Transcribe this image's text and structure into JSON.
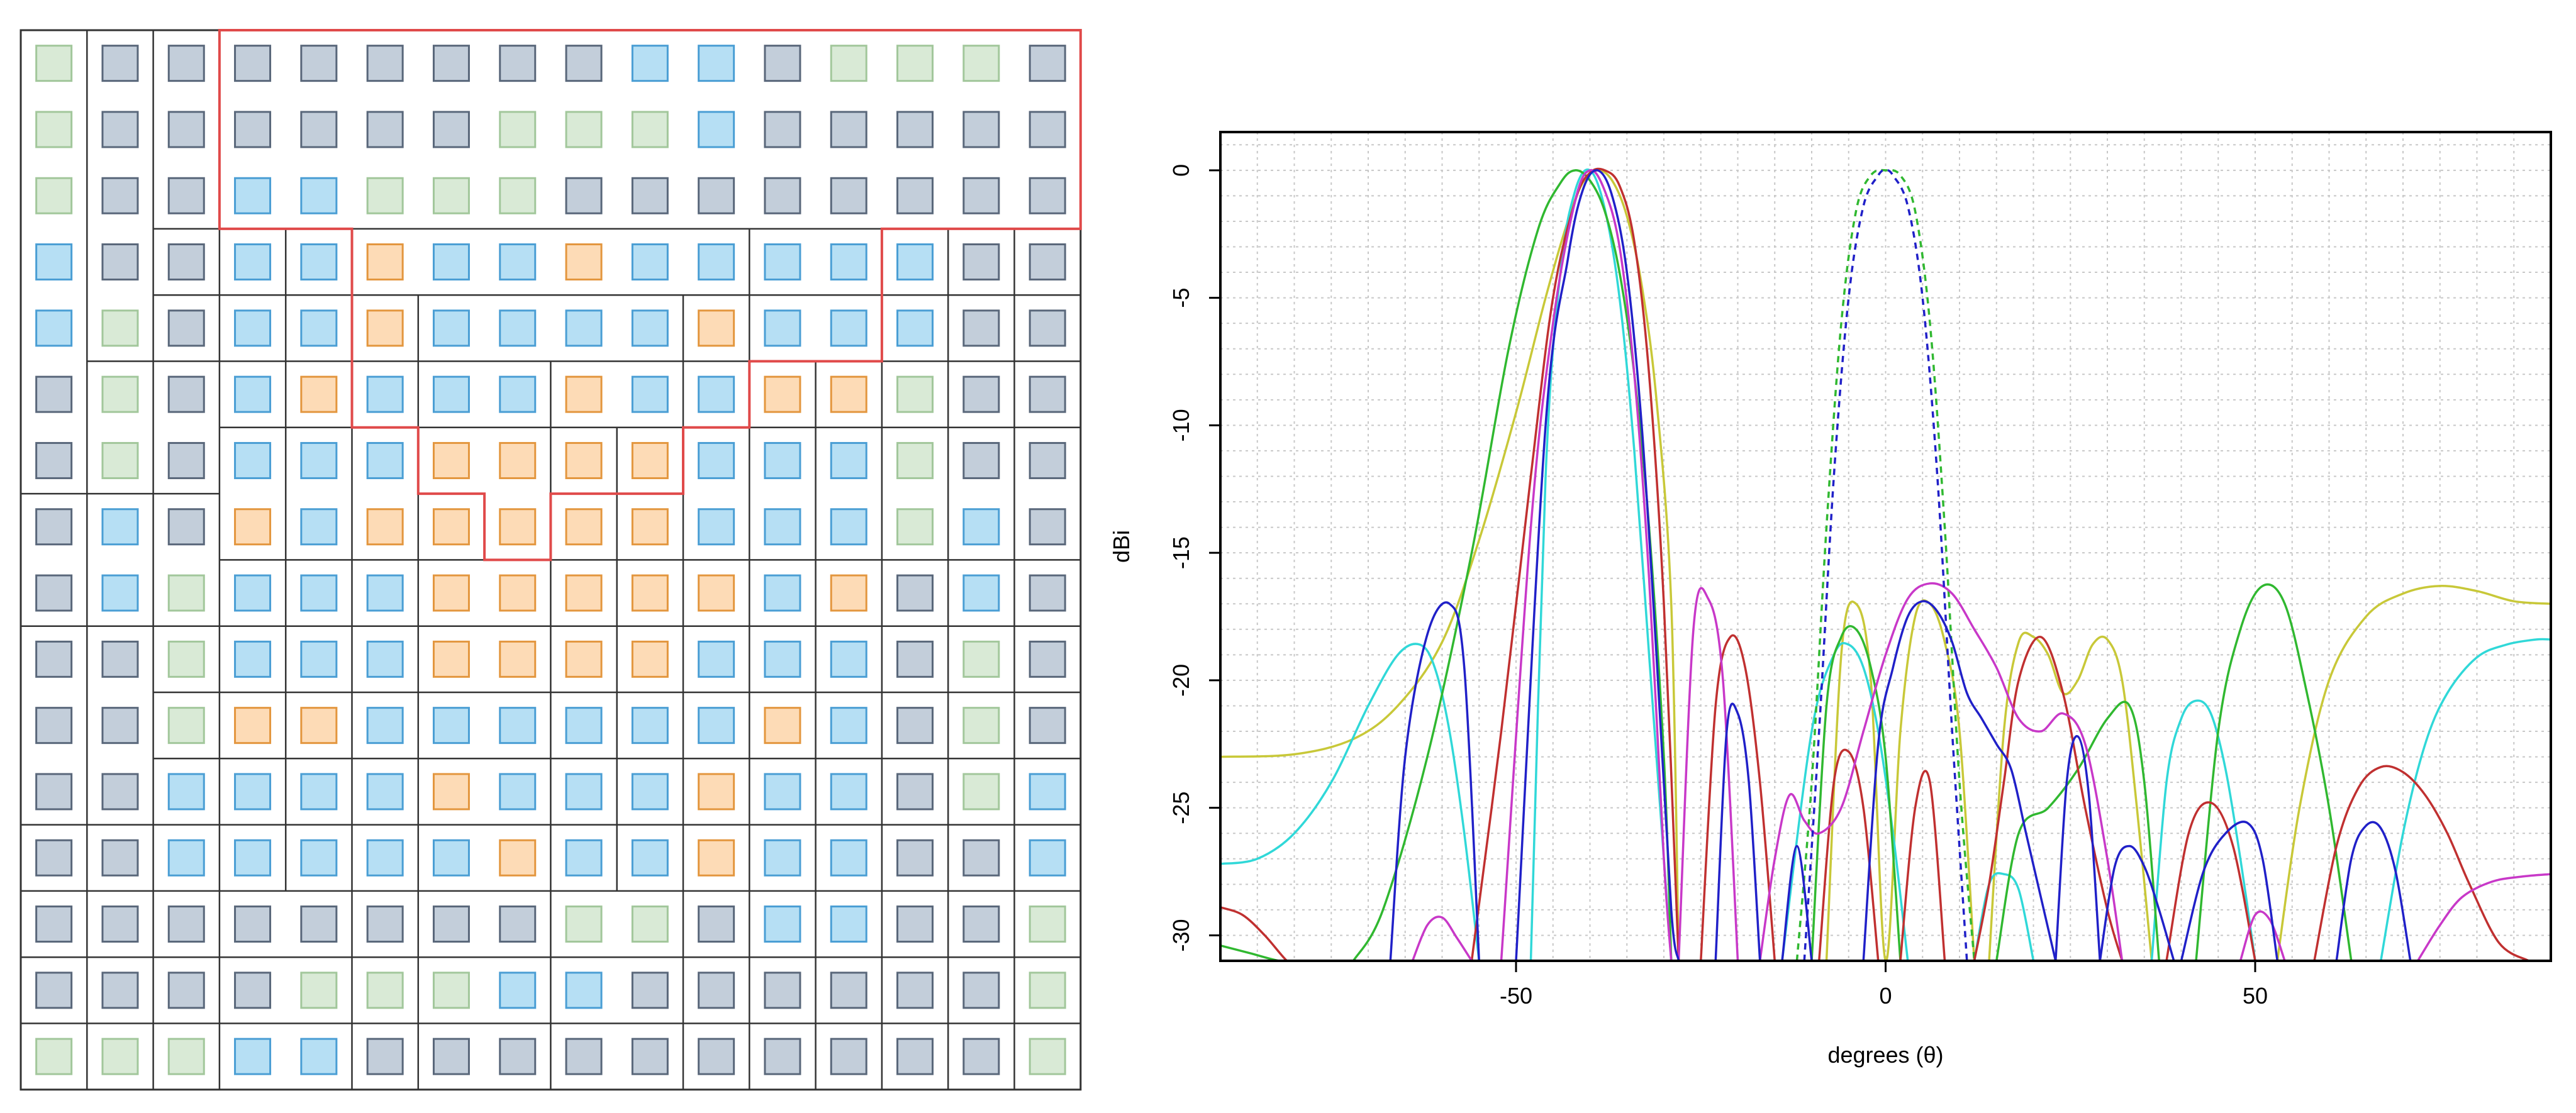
{
  "colors": {
    "gray": "#c3ceda",
    "gray_stroke": "#59677a",
    "blue": "#b6dff4",
    "blue_stroke": "#4a9ed4",
    "green": "#d9ead6",
    "green_stroke": "#a2c79b",
    "orange": "#fddbb6",
    "orange_stroke": "#e3963e",
    "outline": "#333333",
    "highlight": "#e04a4a",
    "grid": "#c8c8c8"
  },
  "array": {
    "colors": [
      "GGGGGGGGGBBGGG",
      "GGGGGGGGGBBGGGG",
      "GGGBBGGGGGGGGGG",
      "BGGBBOBBOBBBBBG",
      "BGGBBOBBBBOBBBG",
      "GGGBOBBBOBBOOGGG",
      "GGGBBBOOOOBBBGGG",
      "GBGOBOOOOOBBBGBG",
      "GBGBBBOOOOOBOGBG",
      "GGGBBBOOOOBBBGGG",
      "GGGOOBBBBBBOBGGG",
      "GGBBBBOBBBOBBGGB",
      "GGBBBBBOBBOBBGGB",
      "GGGGGGGGGGGBBGGG",
      "GGGGGGGBBGGGGGGG",
      "GGGBBGGGGGGGGGGG"
    ],
    "green_cells": [
      [
        0,
        0
      ],
      [
        0,
        12
      ],
      [
        0,
        13
      ],
      [
        0,
        14
      ],
      [
        1,
        0
      ],
      [
        1,
        7
      ],
      [
        1,
        8
      ],
      [
        1,
        9
      ],
      [
        2,
        0
      ],
      [
        2,
        5
      ],
      [
        2,
        6
      ],
      [
        2,
        7
      ],
      [
        4,
        1
      ],
      [
        5,
        1
      ],
      [
        5,
        13
      ],
      [
        6,
        1
      ],
      [
        6,
        13
      ],
      [
        7,
        13
      ],
      [
        8,
        2
      ],
      [
        9,
        2
      ],
      [
        9,
        14
      ],
      [
        10,
        2
      ],
      [
        10,
        14
      ],
      [
        11,
        14
      ],
      [
        13,
        8
      ],
      [
        13,
        9
      ],
      [
        13,
        15
      ],
      [
        14,
        4
      ],
      [
        14,
        5
      ],
      [
        14,
        6
      ],
      [
        14,
        15
      ],
      [
        15,
        0
      ],
      [
        15,
        1
      ],
      [
        15,
        2
      ],
      [
        15,
        15
      ]
    ]
  },
  "chart_data": {
    "type": "line",
    "title": "",
    "xlabel": "degrees (θ)",
    "ylabel": "dBi",
    "xlim": [
      -90,
      90
    ],
    "ylim": [
      -31,
      1.5
    ],
    "xticks": [
      -50,
      0,
      50
    ],
    "yticks": [
      0,
      -5,
      -10,
      -15,
      -20,
      -25,
      -30
    ],
    "grid": true,
    "grid_minor_x": 5,
    "grid_minor_y": 1,
    "series": [
      {
        "color": "#c8c838",
        "dash": false,
        "x": [
          -90,
          -80,
          -72,
          -66,
          -60,
          -55,
          -50,
          -46,
          -43,
          -41,
          -39,
          -37,
          -35,
          -33,
          -31,
          -29,
          -28
        ],
        "y": [
          -23,
          -22.9,
          -22.3,
          -21,
          -18.5,
          -14.5,
          -9.5,
          -5,
          -2,
          -0.5,
          0,
          -0.4,
          -1.8,
          -4.5,
          -9,
          -17,
          -31
        ]
      },
      {
        "color": "#c8c838",
        "dash": false,
        "x": [
          -8,
          -6,
          -4,
          -2,
          0,
          2,
          4,
          6,
          8,
          10,
          12
        ],
        "y": [
          -31,
          -19,
          -17,
          -20,
          -31,
          -22,
          -17.5,
          -17,
          -18.5,
          -22,
          -31
        ]
      },
      {
        "color": "#c8c838",
        "dash": false,
        "x": [
          14,
          16,
          18,
          20,
          22,
          24,
          26,
          28,
          30,
          32,
          34,
          36
        ],
        "y": [
          -31,
          -22,
          -18.5,
          -18.3,
          -19,
          -20.5,
          -20,
          -18.6,
          -18.4,
          -20,
          -25,
          -31
        ]
      },
      {
        "color": "#c8c838",
        "dash": false,
        "x": [
          53,
          56,
          60,
          65,
          70,
          75,
          80,
          85,
          90
        ],
        "y": [
          -31,
          -25,
          -20,
          -17.5,
          -16.6,
          -16.3,
          -16.5,
          -16.9,
          -17
        ]
      },
      {
        "color": "#30d8d8",
        "dash": false,
        "x": [
          -90,
          -85,
          -80,
          -75,
          -70,
          -66,
          -63,
          -61,
          -59,
          -57,
          -55
        ],
        "y": [
          -27.2,
          -27,
          -26,
          -24,
          -21,
          -19,
          -18.6,
          -19.5,
          -22,
          -26,
          -31
        ]
      },
      {
        "color": "#30d8d8",
        "dash": false,
        "x": [
          -48,
          -46,
          -44,
          -42,
          -40,
          -38,
          -36,
          -34,
          -32,
          -30,
          -29
        ],
        "y": [
          -31,
          -12,
          -4,
          -0.8,
          0,
          -1.5,
          -5,
          -11,
          -19,
          -27,
          -31
        ]
      },
      {
        "color": "#30d8d8",
        "dash": false,
        "x": [
          -14,
          -10,
          -7,
          -5,
          -3,
          -1,
          1,
          3
        ],
        "y": [
          -31,
          -22,
          -19,
          -18.6,
          -19.5,
          -22,
          -26,
          -31
        ]
      },
      {
        "color": "#30d8d8",
        "dash": false,
        "x": [
          12,
          14,
          16,
          18,
          20
        ],
        "y": [
          -31,
          -28,
          -27.6,
          -28.2,
          -31
        ]
      },
      {
        "color": "#30d8d8",
        "dash": false,
        "x": [
          36,
          38,
          40,
          42,
          44,
          46,
          48,
          50
        ],
        "y": [
          -31,
          -24,
          -21.5,
          -20.8,
          -21.3,
          -23.5,
          -27,
          -31
        ]
      },
      {
        "color": "#30d8d8",
        "dash": false,
        "x": [
          67,
          70,
          73,
          76,
          80,
          84,
          88,
          90
        ],
        "y": [
          -31,
          -26,
          -22.5,
          -20.5,
          -19.1,
          -18.6,
          -18.4,
          -18.4
        ]
      },
      {
        "color": "#30b830",
        "dash": false,
        "x": [
          -90,
          -86,
          -82,
          -79
        ],
        "y": [
          -30.4,
          -30.7,
          -31,
          -31
        ]
      },
      {
        "color": "#30b830",
        "dash": false,
        "x": [
          -72,
          -68,
          -62,
          -56,
          -51,
          -47,
          -44,
          -42,
          -40,
          -38,
          -36,
          -34,
          -32,
          -30,
          -29
        ],
        "y": [
          -31,
          -29,
          -23,
          -15,
          -7,
          -2.3,
          -0.5,
          0,
          -0.4,
          -1.6,
          -4,
          -8,
          -14,
          -23,
          -31
        ]
      },
      {
        "color": "#30b830",
        "dash": false,
        "x": [
          -10,
          -8,
          -6,
          -4,
          -2,
          0,
          2
        ],
        "y": [
          -31,
          -21,
          -18.3,
          -18,
          -19.5,
          -23,
          -31
        ]
      },
      {
        "color": "#30b830",
        "dash": false,
        "x": [
          15,
          18,
          22,
          26,
          30,
          33,
          35,
          37
        ],
        "y": [
          -31,
          -26,
          -25,
          -23.5,
          -21.5,
          -21,
          -24,
          -31
        ]
      },
      {
        "color": "#30b830",
        "dash": false,
        "x": [
          42,
          45,
          48,
          51,
          54,
          57,
          60,
          63
        ],
        "y": [
          -31,
          -22,
          -18,
          -16.3,
          -17,
          -20.5,
          -25,
          -31
        ]
      },
      {
        "color": "#30b830",
        "dash": true,
        "x": [
          -12,
          -10,
          -8,
          -6,
          -4,
          -2,
          0,
          2,
          4,
          6,
          8,
          10,
          12
        ],
        "y": [
          -31,
          -24,
          -14,
          -6,
          -1.6,
          -0.2,
          0,
          -0.2,
          -1.6,
          -6,
          -14,
          -24,
          -31
        ]
      },
      {
        "color": "#c03030",
        "dash": false,
        "x": [
          -90,
          -87,
          -84,
          -81,
          -80
        ],
        "y": [
          -28.9,
          -29.2,
          -30,
          -31,
          -31
        ]
      },
      {
        "color": "#c03030",
        "dash": false,
        "x": [
          -56,
          -52,
          -48,
          -45,
          -42,
          -40,
          -38,
          -36,
          -34,
          -32,
          -30,
          -28
        ],
        "y": [
          -31,
          -22,
          -12,
          -5,
          -1.2,
          -0.1,
          0,
          -0.6,
          -2.8,
          -8,
          -17,
          -31
        ]
      },
      {
        "color": "#c03030",
        "dash": false,
        "x": [
          -25,
          -23,
          -21,
          -19,
          -17,
          -15
        ],
        "y": [
          -31,
          -21,
          -18.3,
          -19.5,
          -24,
          -31
        ]
      },
      {
        "color": "#c03030",
        "dash": false,
        "x": [
          -9,
          -7,
          -5,
          -3,
          -1
        ],
        "y": [
          -31,
          -24,
          -22.8,
          -25,
          -31
        ]
      },
      {
        "color": "#c03030",
        "dash": false,
        "x": [
          2,
          4,
          6,
          8
        ],
        "y": [
          -31,
          -25,
          -24,
          -31
        ]
      },
      {
        "color": "#c03030",
        "dash": false,
        "x": [
          12,
          14,
          16,
          18,
          21,
          24,
          27,
          30,
          32
        ],
        "y": [
          -31,
          -28,
          -24,
          -20,
          -18.3,
          -20.5,
          -25,
          -29,
          -31
        ]
      },
      {
        "color": "#c03030",
        "dash": false,
        "x": [
          38,
          41,
          44,
          47,
          50
        ],
        "y": [
          -31,
          -26,
          -24.8,
          -26.5,
          -31
        ]
      },
      {
        "color": "#c03030",
        "dash": false,
        "x": [
          58,
          61,
          64,
          67,
          70,
          73,
          76,
          79,
          83,
          87
        ],
        "y": [
          -31,
          -26.5,
          -24.2,
          -23.4,
          -23.6,
          -24.5,
          -26,
          -28,
          -30.3,
          -31
        ]
      },
      {
        "color": "#c838c8",
        "dash": false,
        "x": [
          -64,
          -62,
          -60,
          -58,
          -56
        ],
        "y": [
          -31,
          -29.6,
          -29.3,
          -30.1,
          -31
        ]
      },
      {
        "color": "#c838c8",
        "dash": false,
        "x": [
          -52,
          -48,
          -45,
          -42,
          -40,
          -38,
          -36,
          -34,
          -32,
          -30,
          -29
        ],
        "y": [
          -31,
          -14,
          -6,
          -1.2,
          0,
          -0.8,
          -3,
          -8,
          -16,
          -27,
          -31
        ]
      },
      {
        "color": "#c838c8",
        "dash": false,
        "x": [
          -28,
          -26,
          -24,
          -22,
          -20
        ],
        "y": [
          -31,
          -18,
          -16.8,
          -20,
          -31
        ]
      },
      {
        "color": "#c838c8",
        "dash": false,
        "x": [
          -17,
          -15,
          -13,
          -11,
          -9,
          -6,
          -3,
          0,
          3,
          6,
          9,
          12,
          15,
          18,
          21,
          24,
          27,
          30,
          32
        ],
        "y": [
          -31,
          -27,
          -24.5,
          -25.5,
          -26,
          -25,
          -22,
          -19,
          -16.8,
          -16.2,
          -16.6,
          -18,
          -19.5,
          -21.5,
          -22,
          -21.3,
          -22.5,
          -27,
          -31
        ]
      },
      {
        "color": "#c838c8",
        "dash": false,
        "x": [
          48,
          50,
          52,
          54
        ],
        "y": [
          -31,
          -29.2,
          -29.4,
          -31
        ]
      },
      {
        "color": "#c838c8",
        "dash": false,
        "x": [
          72,
          75,
          78,
          82,
          86,
          90
        ],
        "y": [
          -31,
          -29.6,
          -28.5,
          -27.9,
          -27.7,
          -27.6
        ]
      },
      {
        "color": "#2020c8",
        "dash": false,
        "x": [
          -67,
          -65,
          -62,
          -59,
          -57,
          -55
        ],
        "y": [
          -31,
          -23,
          -18.2,
          -17,
          -19.5,
          -31
        ]
      },
      {
        "color": "#2020c8",
        "dash": false,
        "x": [
          -50,
          -46,
          -43,
          -41,
          -39,
          -37,
          -35,
          -33,
          -31,
          -29,
          -28
        ],
        "y": [
          -31,
          -10,
          -3.5,
          -0.8,
          0,
          -1,
          -4,
          -10,
          -19,
          -29,
          -31
        ]
      },
      {
        "color": "#2020c8",
        "dash": false,
        "x": [
          -23,
          -21.5,
          -20,
          -18.5,
          -17
        ],
        "y": [
          -31,
          -22,
          -21.3,
          -24,
          -31
        ]
      },
      {
        "color": "#2020c8",
        "dash": false,
        "x": [
          -14,
          -12,
          -10
        ],
        "y": [
          -31,
          -26.5,
          -31
        ]
      },
      {
        "color": "#2020c8",
        "dash": false,
        "x": [
          -3,
          -1,
          1,
          3,
          5,
          7,
          9,
          11,
          13,
          15,
          17,
          19,
          21,
          23
        ],
        "y": [
          -31,
          -22.5,
          -19.5,
          -17.5,
          -16.9,
          -17.3,
          -18.5,
          -20.5,
          -21.5,
          -22.5,
          -23.5,
          -26,
          -28.5,
          -31
        ]
      },
      {
        "color": "#2020c8",
        "dash": false,
        "x": [
          23,
          24.5,
          26,
          27.5,
          29
        ],
        "y": [
          -31,
          -24,
          -22.2,
          -24.5,
          -31
        ]
      },
      {
        "color": "#2020c8",
        "dash": false,
        "x": [
          29,
          31,
          33,
          35,
          37,
          39
        ],
        "y": [
          -31,
          -27.3,
          -26.5,
          -27.3,
          -29,
          -31
        ]
      },
      {
        "color": "#2020c8",
        "dash": false,
        "x": [
          40,
          43,
          46,
          49,
          51,
          53
        ],
        "y": [
          -31,
          -27.5,
          -26,
          -25.6,
          -27,
          -31
        ]
      },
      {
        "color": "#2020c8",
        "dash": false,
        "x": [
          61,
          63,
          65,
          67,
          69,
          71
        ],
        "y": [
          -31,
          -27,
          -25.7,
          -25.8,
          -27.5,
          -31
        ]
      },
      {
        "color": "#2020c8",
        "dash": true,
        "x": [
          -11,
          -9,
          -7,
          -5,
          -3,
          -1,
          0,
          1,
          3,
          5,
          7,
          9,
          11
        ],
        "y": [
          -31,
          -22,
          -12,
          -5,
          -1.4,
          -0.2,
          0,
          -0.2,
          -1.4,
          -5,
          -12,
          -22,
          -31
        ]
      }
    ]
  }
}
